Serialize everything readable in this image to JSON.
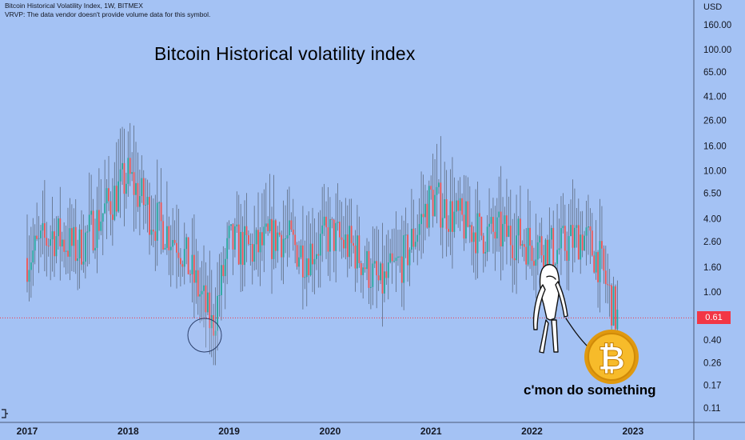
{
  "header": {
    "symbol_line": "Bitcoin Historical Volatility Index, 1W, BITMEX",
    "notice": "VRVP: The data vendor doesn't provide volume data for this symbol."
  },
  "price_axis": {
    "currency": "USD",
    "current_price": "0.61",
    "current_price_color": "#f23645"
  },
  "annotations": {
    "title": "Bitcoin Historical volatility index",
    "caption": "c'mon do something",
    "bitcoin_coin_symbol": "₿"
  },
  "colors": {
    "background": "#a4c2f4",
    "up_candle": "#26a69a",
    "down_candle": "#ef5350",
    "wick": "#5d6b80",
    "price_line": "#f23645",
    "coin_gold": "#f2b11b"
  },
  "chart_data": {
    "type": "candlestick",
    "timeframe": "1W",
    "y_scale": "log",
    "ylim": [
      0.1,
      210
    ],
    "y_ticks": [
      "160.00",
      "100.00",
      "65.00",
      "41.00",
      "26.00",
      "16.00",
      "10.00",
      "6.50",
      "4.00",
      "2.60",
      "1.60",
      "1.00",
      "0.61",
      "0.40",
      "0.26",
      "0.17",
      "0.11"
    ],
    "x_ticks": [
      "2017",
      "2018",
      "2019",
      "2020",
      "2021",
      "2022",
      "2023"
    ],
    "approx_weekly_closes": [
      {
        "x": "2017-01",
        "y": 1.9
      },
      {
        "x": "2017-04",
        "y": 3.0
      },
      {
        "x": "2017-07",
        "y": 2.2
      },
      {
        "x": "2017-10",
        "y": 4.5
      },
      {
        "x": "2018-01",
        "y": 9.0
      },
      {
        "x": "2018-04",
        "y": 4.0
      },
      {
        "x": "2018-07",
        "y": 2.6
      },
      {
        "x": "2018-10",
        "y": 0.8
      },
      {
        "x": "2018-11",
        "y": 0.5
      },
      {
        "x": "2019-01",
        "y": 2.5
      },
      {
        "x": "2019-04",
        "y": 2.2
      },
      {
        "x": "2019-07",
        "y": 3.0
      },
      {
        "x": "2019-10",
        "y": 2.0
      },
      {
        "x": "2020-01",
        "y": 3.0
      },
      {
        "x": "2020-04",
        "y": 2.2
      },
      {
        "x": "2020-07",
        "y": 1.1
      },
      {
        "x": "2020-10",
        "y": 2.0
      },
      {
        "x": "2021-01",
        "y": 6.0
      },
      {
        "x": "2021-04",
        "y": 4.0
      },
      {
        "x": "2021-07",
        "y": 3.0
      },
      {
        "x": "2021-10",
        "y": 3.0
      },
      {
        "x": "2022-01",
        "y": 2.5
      },
      {
        "x": "2022-04",
        "y": 2.2
      },
      {
        "x": "2022-07",
        "y": 3.0
      },
      {
        "x": "2022-09",
        "y": 1.8
      },
      {
        "x": "2022-11",
        "y": 0.61
      }
    ],
    "grid": false,
    "price_line": 0.61
  }
}
